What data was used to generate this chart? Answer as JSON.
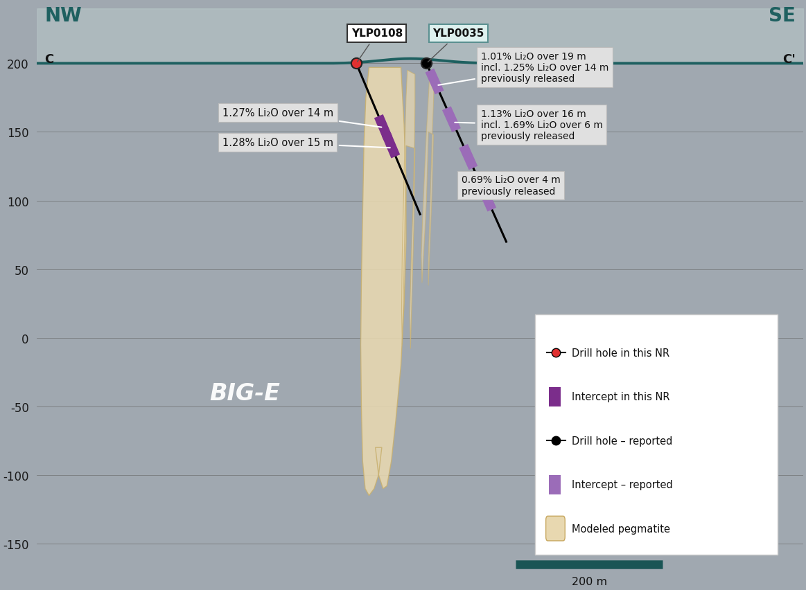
{
  "bg_color": "#a0a8b0",
  "surface_color": "#1e6060",
  "xlim": [
    -550,
    650
  ],
  "ylim": [
    -175,
    240
  ],
  "yticks": [
    -150,
    -100,
    -50,
    0,
    50,
    100,
    150,
    200
  ],
  "purple_dark": "#7B2D8B",
  "purple_light": "#9B6CB8",
  "teal_dark": "#1a5f5f",
  "red_color": "#e03030",
  "white_color": "#ffffff",
  "ann_box_color": "#e0e0e0",
  "ann_edge_color": "#aaaaaa",
  "scale_bar_color": "#1a5555",
  "legend_bg": "#ffffff"
}
